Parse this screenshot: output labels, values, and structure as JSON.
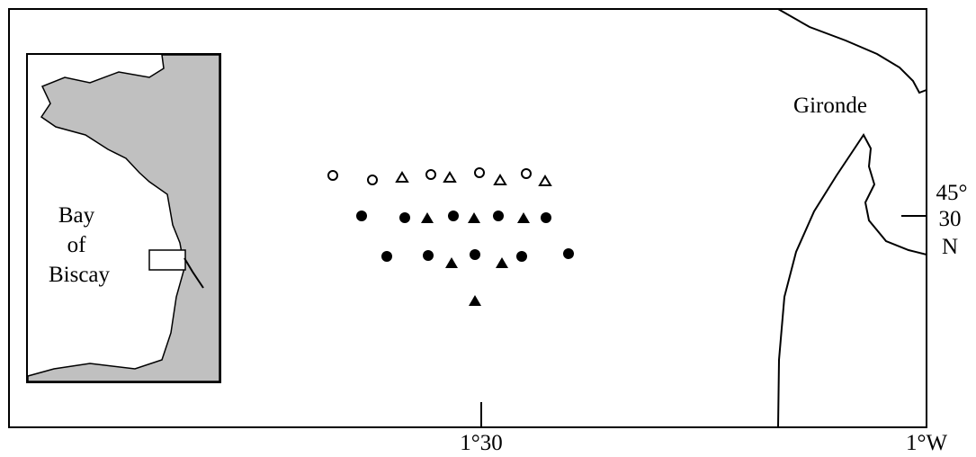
{
  "inset": {
    "label_lines": [
      "Bay",
      "of",
      "Biscay"
    ]
  },
  "labels": {
    "estuary": "Gironde",
    "lat_deg": "45°",
    "lat_min": "30",
    "lat_hemi": "N",
    "lon_center": "1°30",
    "lon_right": "1°W"
  }
}
